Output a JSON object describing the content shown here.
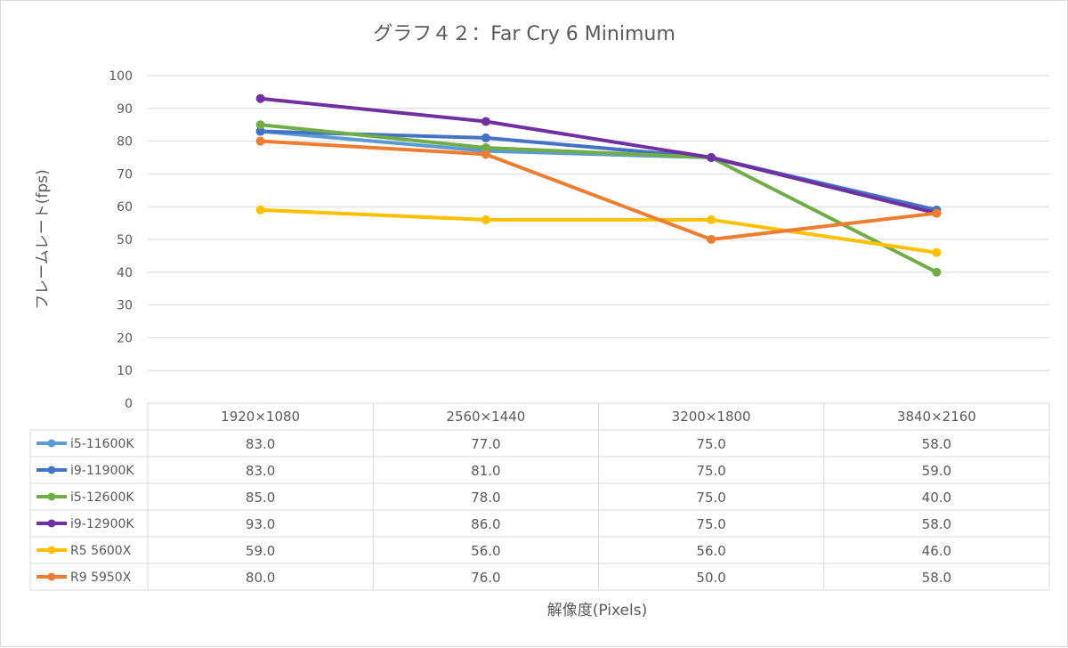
{
  "chart_data": {
    "type": "line",
    "title": "グラフ４２：Far Cry 6 Minimum",
    "xlabel": "解像度(Pixels)",
    "ylabel": "フレームレート(fps)",
    "ylim": [
      0,
      100
    ],
    "yticks": [
      0,
      10,
      20,
      30,
      40,
      50,
      60,
      70,
      80,
      90,
      100
    ],
    "grid": true,
    "legend": "data-table",
    "categories": [
      "1920×1080",
      "2560×1440",
      "3200×1800",
      "3840×2160"
    ],
    "series": [
      {
        "name": "i5-11600K",
        "color": "#5b9bd5",
        "values": [
          83.0,
          77.0,
          75.0,
          58.0
        ],
        "labels": [
          "83.0",
          "77.0",
          "75.0",
          "58.0"
        ]
      },
      {
        "name": "i9-11900K",
        "color": "#4472c4",
        "values": [
          83.0,
          81.0,
          75.0,
          59.0
        ],
        "labels": [
          "83.0",
          "81.0",
          "75.0",
          "59.0"
        ]
      },
      {
        "name": "i5-12600K",
        "color": "#70ad47",
        "values": [
          85.0,
          78.0,
          75.0,
          40.0
        ],
        "labels": [
          "85.0",
          "78.0",
          "75.0",
          "40.0"
        ]
      },
      {
        "name": "i9-12900K",
        "color": "#7030a0",
        "values": [
          93.0,
          86.0,
          75.0,
          58.0
        ],
        "labels": [
          "93.0",
          "86.0",
          "75.0",
          "58.0"
        ]
      },
      {
        "name": "R5 5600X",
        "color": "#ffc000",
        "values": [
          59.0,
          56.0,
          56.0,
          46.0
        ],
        "labels": [
          "59.0",
          "56.0",
          "56.0",
          "46.0"
        ]
      },
      {
        "name": "R9 5950X",
        "color": "#ed7d31",
        "values": [
          80.0,
          76.0,
          50.0,
          58.0
        ],
        "labels": [
          "80.0",
          "76.0",
          "50.0",
          "58.0"
        ]
      }
    ]
  }
}
